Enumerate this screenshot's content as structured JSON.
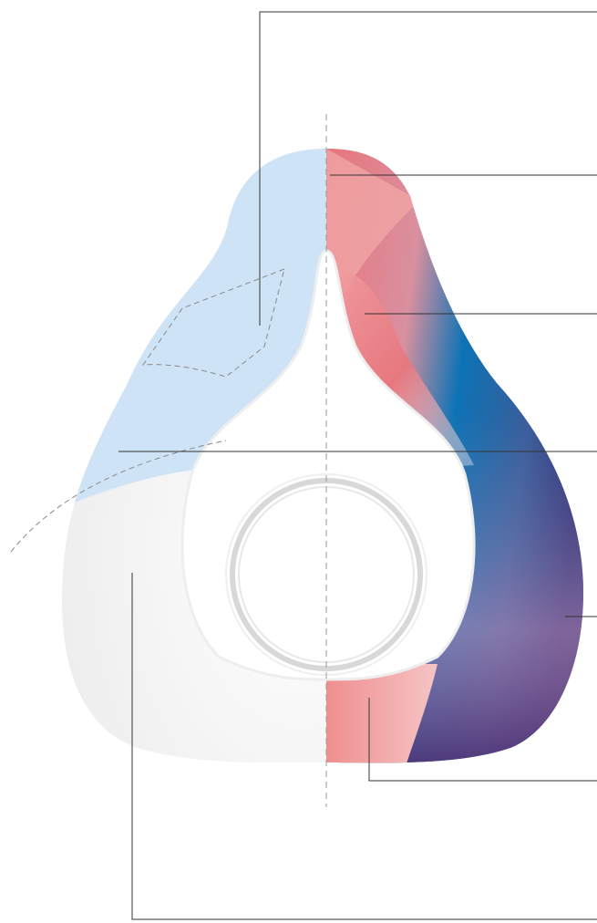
{
  "figure": {
    "subject": "cushion-illustration",
    "colors": {
      "background": "#ffffff",
      "leader_line": "#333333",
      "centerline": "#9a9a9a",
      "top_zone": "#cfe3f6",
      "nose_zone": "#e9747a",
      "outer_band": "#0d73b5",
      "outer_band_dark": "#2e2a6e",
      "base_zone": "#f0f0f0",
      "chin_zone": "#ef8f8f",
      "ring": "#d8d8d8"
    },
    "callouts": [
      {
        "id": "callout-top"
      },
      {
        "id": "callout-nose-bridge"
      },
      {
        "id": "callout-nose-side"
      },
      {
        "id": "callout-cheek"
      },
      {
        "id": "callout-outer-band"
      },
      {
        "id": "callout-chin"
      },
      {
        "id": "callout-base"
      }
    ]
  }
}
